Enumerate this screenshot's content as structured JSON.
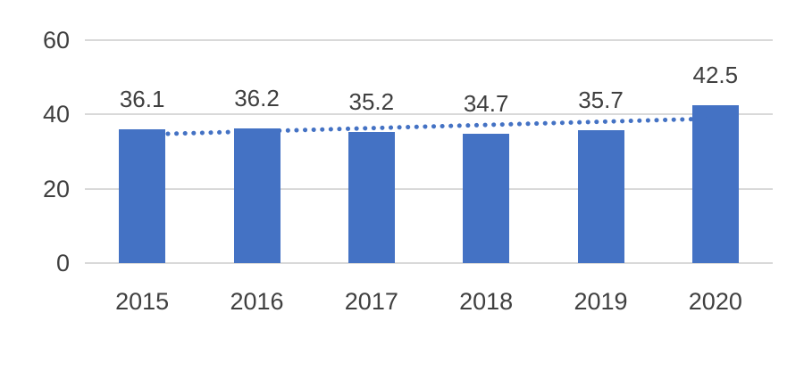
{
  "chart_data": {
    "type": "bar",
    "title": "",
    "categories": [
      "2015",
      "2016",
      "2017",
      "2018",
      "2019",
      "2020"
    ],
    "values": [
      36.1,
      36.2,
      35.2,
      34.7,
      35.7,
      42.5
    ],
    "data_labels": [
      "36.1",
      "36.2",
      "35.2",
      "34.7",
      "35.7",
      "42.5"
    ],
    "y_ticks": [
      0,
      20,
      40,
      60
    ],
    "ylim": [
      0,
      60
    ],
    "grid": true,
    "legend": "none",
    "bar_color": "#4472C4",
    "gridline_color": "#d9d9d9",
    "label_color": "#3f3f3f",
    "axis_label_color": "#404040",
    "background_color": "#ffffff",
    "trendline": {
      "style": "dotted",
      "color": "#4472C4",
      "start_value": 34.6,
      "end_value": 38.9
    }
  }
}
